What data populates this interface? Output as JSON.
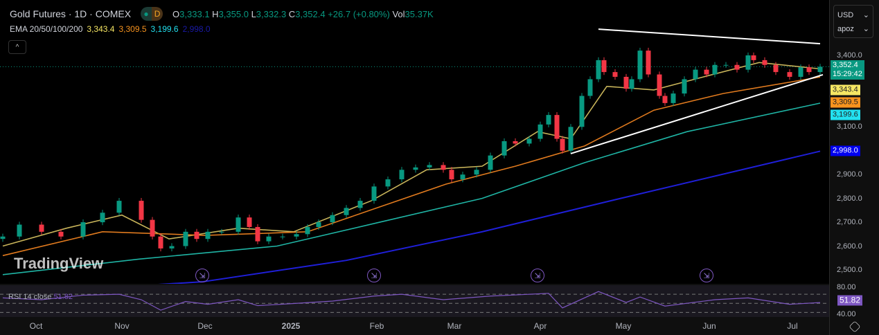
{
  "header": {
    "title": "Gold Futures · 1D · COMEX",
    "interval_badge": "D",
    "ohlc": {
      "o_label": "O",
      "o": "3,333.1",
      "h_label": "H",
      "h": "3,355.0",
      "l_label": "L",
      "l": "3,332.3",
      "c_label": "C",
      "c": "3,352.4",
      "change": "+26.7 (+0.80%)",
      "vol_label": "Vol",
      "vol": "35.37K"
    },
    "ema": {
      "label": "EMA 20/50/100/200",
      "v20": "3,343.4",
      "v50": "3,309.5",
      "v100": "3,199.6",
      "v200": "2,998.0"
    },
    "collapse": "^"
  },
  "axis": {
    "currency": "USD",
    "unit": "apoz",
    "ticks": [
      "3,400.0",
      "3,100.0",
      "2,900.0",
      "2,800.0",
      "2,700.0",
      "2,600.0",
      "2,500.0"
    ],
    "badges": {
      "last": "3,352.4",
      "countdown": "15:29:42",
      "ema20": "3,343.4",
      "ema50": "3,309.5",
      "ema100": "3,199.6",
      "ema200": "2,998.0",
      "rsi": "51.82"
    },
    "rsi_ticks": [
      "80.00",
      "40.00"
    ]
  },
  "rsi": {
    "legend": "RSI 14 close",
    "value": "51.82"
  },
  "watermark": "TradingView",
  "colors": {
    "up": "#089981",
    "down": "#f23645",
    "ema20": "#c8b45a",
    "ema50": "#e07a1e",
    "ema100": "#1fb5a5",
    "ema200": "#1f1fd8",
    "rsi": "#7e57c2"
  },
  "chart_data": {
    "type": "candlestick",
    "xaxis_type": "date",
    "ylim": [
      2450,
      3520
    ],
    "x_ticks": [
      {
        "date": "2024-10-01",
        "label": "Oct"
      },
      {
        "date": "2024-11-01",
        "label": "Nov"
      },
      {
        "date": "2024-12-01",
        "label": "Dec"
      },
      {
        "date": "2025-01-01",
        "label": "2025"
      },
      {
        "date": "2025-02-01",
        "label": "Feb"
      },
      {
        "date": "2025-03-01",
        "label": "Mar"
      },
      {
        "date": "2025-04-01",
        "label": "Apr"
      },
      {
        "date": "2025-05-01",
        "label": "May"
      },
      {
        "date": "2025-06-01",
        "label": "Jun"
      },
      {
        "date": "2025-07-01",
        "label": "Jul"
      }
    ],
    "closes": [
      [
        "2024-09-19",
        2640
      ],
      [
        "2024-09-25",
        2690
      ],
      [
        "2024-10-03",
        2660
      ],
      [
        "2024-10-10",
        2640
      ],
      [
        "2024-10-18",
        2700
      ],
      [
        "2024-10-25",
        2740
      ],
      [
        "2024-10-31",
        2790
      ],
      [
        "2024-11-08",
        2710
      ],
      [
        "2024-11-12",
        2640
      ],
      [
        "2024-11-15",
        2590
      ],
      [
        "2024-11-19",
        2600
      ],
      [
        "2024-11-24",
        2660
      ],
      [
        "2024-11-28",
        2630
      ],
      [
        "2024-12-02",
        2660
      ],
      [
        "2024-12-07",
        2660
      ],
      [
        "2024-12-13",
        2720
      ],
      [
        "2024-12-17",
        2680
      ],
      [
        "2024-12-20",
        2620
      ],
      [
        "2024-12-24",
        2640
      ],
      [
        "2024-12-29",
        2640
      ],
      [
        "2025-01-03",
        2650
      ],
      [
        "2025-01-07",
        2680
      ],
      [
        "2025-01-11",
        2700
      ],
      [
        "2025-01-16",
        2730
      ],
      [
        "2025-01-21",
        2760
      ],
      [
        "2025-01-26",
        2790
      ],
      [
        "2025-01-31",
        2850
      ],
      [
        "2025-02-05",
        2880
      ],
      [
        "2025-02-10",
        2920
      ],
      [
        "2025-02-15",
        2930
      ],
      [
        "2025-02-20",
        2940
      ],
      [
        "2025-02-25",
        2920
      ],
      [
        "2025-02-28",
        2880
      ],
      [
        "2025-03-04",
        2900
      ],
      [
        "2025-03-09",
        2920
      ],
      [
        "2025-03-14",
        2980
      ],
      [
        "2025-03-19",
        3040
      ],
      [
        "2025-03-23",
        3030
      ],
      [
        "2025-03-28",
        3050
      ],
      [
        "2025-04-01",
        3110
      ],
      [
        "2025-04-04",
        3150
      ],
      [
        "2025-04-07",
        3050
      ],
      [
        "2025-04-09",
        3000
      ],
      [
        "2025-04-12",
        3100
      ],
      [
        "2025-04-16",
        3230
      ],
      [
        "2025-04-19",
        3300
      ],
      [
        "2025-04-22",
        3380
      ],
      [
        "2025-04-24",
        3330
      ],
      [
        "2025-04-28",
        3310
      ],
      [
        "2025-05-02",
        3260
      ],
      [
        "2025-05-04",
        3300
      ],
      [
        "2025-05-07",
        3420
      ],
      [
        "2025-05-10",
        3320
      ],
      [
        "2025-05-14",
        3230
      ],
      [
        "2025-05-16",
        3200
      ],
      [
        "2025-05-19",
        3240
      ],
      [
        "2025-05-23",
        3300
      ],
      [
        "2025-05-27",
        3340
      ],
      [
        "2025-05-31",
        3320
      ],
      [
        "2025-06-03",
        3360
      ],
      [
        "2025-06-07",
        3360
      ],
      [
        "2025-06-11",
        3340
      ],
      [
        "2025-06-15",
        3400
      ],
      [
        "2025-06-17",
        3380
      ],
      [
        "2025-06-21",
        3360
      ],
      [
        "2025-06-25",
        3330
      ],
      [
        "2025-06-30",
        3310
      ],
      [
        "2025-07-04",
        3350
      ],
      [
        "2025-07-07",
        3330
      ],
      [
        "2025-07-11",
        3352.4
      ]
    ],
    "series": [
      {
        "name": "EMA 20",
        "values": [
          [
            "2024-09-19",
            2600
          ],
          [
            "2024-10-12",
            2675
          ],
          [
            "2024-11-01",
            2730
          ],
          [
            "2024-11-18",
            2630
          ],
          [
            "2024-12-13",
            2675
          ],
          [
            "2025-01-02",
            2660
          ],
          [
            "2025-01-30",
            2790
          ],
          [
            "2025-02-19",
            2920
          ],
          [
            "2025-03-11",
            2935
          ],
          [
            "2025-03-31",
            3080
          ],
          [
            "2025-04-12",
            3050
          ],
          [
            "2025-04-25",
            3270
          ],
          [
            "2025-05-12",
            3255
          ],
          [
            "2025-05-30",
            3310
          ],
          [
            "2025-06-19",
            3370
          ],
          [
            "2025-07-11",
            3343.4
          ]
        ]
      },
      {
        "name": "EMA 50",
        "values": [
          [
            "2024-09-19",
            2560
          ],
          [
            "2024-10-25",
            2660
          ],
          [
            "2024-12-01",
            2645
          ],
          [
            "2025-01-07",
            2660
          ],
          [
            "2025-02-01",
            2760
          ],
          [
            "2025-02-26",
            2860
          ],
          [
            "2025-03-23",
            2935
          ],
          [
            "2025-04-17",
            3020
          ],
          [
            "2025-05-12",
            3170
          ],
          [
            "2025-06-06",
            3240
          ],
          [
            "2025-07-11",
            3309.5
          ]
        ]
      },
      {
        "name": "EMA 100",
        "values": [
          [
            "2024-09-19",
            2480
          ],
          [
            "2024-11-07",
            2545
          ],
          [
            "2024-12-27",
            2600
          ],
          [
            "2025-02-02",
            2700
          ],
          [
            "2025-03-11",
            2800
          ],
          [
            "2025-04-17",
            2950
          ],
          [
            "2025-05-24",
            3080
          ],
          [
            "2025-07-11",
            3199.6
          ]
        ]
      },
      {
        "name": "EMA 200",
        "values": [
          [
            "2024-09-19",
            2400
          ],
          [
            "2024-11-30",
            2450
          ],
          [
            "2025-01-21",
            2540
          ],
          [
            "2025-03-11",
            2660
          ],
          [
            "2025-04-30",
            2800
          ],
          [
            "2025-07-11",
            2998
          ]
        ]
      }
    ],
    "trendlines": [
      {
        "from": [
          "2025-04-22",
          3510
        ],
        "to": [
          "2025-07-11",
          3449
        ]
      },
      {
        "from": [
          "2025-04-12",
          2988
        ],
        "to": [
          "2025-07-12",
          3319
        ]
      }
    ],
    "last_price": 3352.4,
    "events": [
      "2024-11-30",
      "2025-01-31",
      "2025-03-31",
      "2025-05-31"
    ],
    "rsi": {
      "levels": [
        70,
        50,
        30
      ],
      "ylim": [
        20,
        90
      ],
      "values": [
        [
          "2024-09-19",
          62
        ],
        [
          "2024-10-03",
          58
        ],
        [
          "2024-10-18",
          68
        ],
        [
          "2024-10-31",
          70
        ],
        [
          "2024-11-08",
          58
        ],
        [
          "2024-11-15",
          35
        ],
        [
          "2024-11-24",
          54
        ],
        [
          "2024-12-02",
          48
        ],
        [
          "2024-12-13",
          58
        ],
        [
          "2024-12-20",
          45
        ],
        [
          "2025-01-03",
          50
        ],
        [
          "2025-01-16",
          55
        ],
        [
          "2025-01-31",
          66
        ],
        [
          "2025-02-10",
          70
        ],
        [
          "2025-02-25",
          58
        ],
        [
          "2025-03-14",
          66
        ],
        [
          "2025-04-04",
          72
        ],
        [
          "2025-04-09",
          40
        ],
        [
          "2025-04-22",
          76
        ],
        [
          "2025-05-02",
          52
        ],
        [
          "2025-05-07",
          64
        ],
        [
          "2025-05-16",
          44
        ],
        [
          "2025-06-03",
          58
        ],
        [
          "2025-06-15",
          62
        ],
        [
          "2025-06-30",
          48
        ],
        [
          "2025-07-11",
          51.82
        ]
      ]
    }
  }
}
